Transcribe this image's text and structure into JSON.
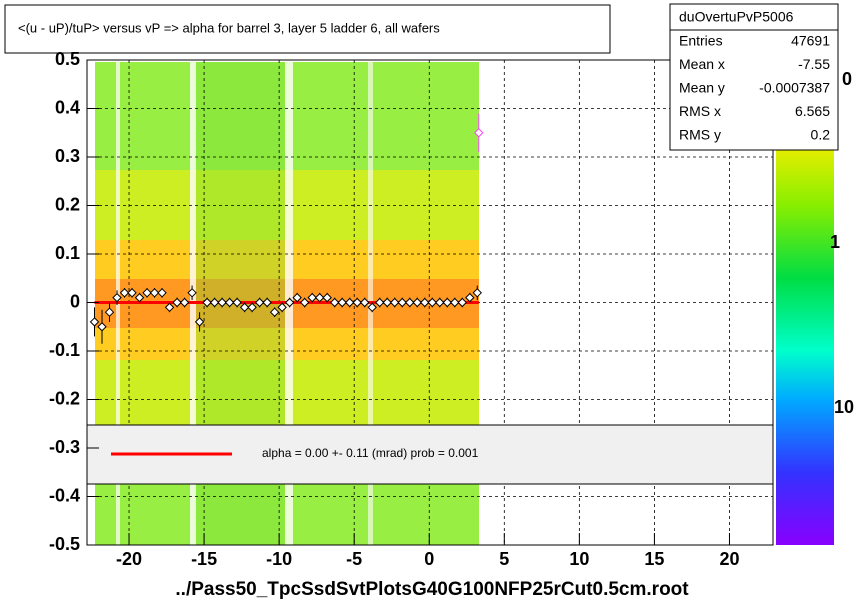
{
  "chart_data": {
    "type": "scatter",
    "title": "<(u - uP)/tuP>  versus   vP => alpha for barrel 3, layer 5 ladder 6, all wafers",
    "x_label": "../Pass50_TpcSsdSvtPlotsG40G100NFP25rCut0.5cm.root",
    "xlim": [
      -22.8,
      22.9
    ],
    "ylim": [
      -0.5,
      0.5
    ],
    "xticks": [
      -20,
      -15,
      -10,
      -5,
      0,
      5,
      10,
      15,
      20
    ],
    "yticks": [
      0.5,
      0.4,
      0.3,
      0.2,
      0.1,
      0,
      -0.1,
      -0.2,
      -0.3,
      -0.4,
      -0.5
    ],
    "grid": true,
    "series": [
      {
        "color": "#000000",
        "x": [
          -22.3,
          -21.8,
          -21.3,
          -20.8,
          -20.3,
          -19.8,
          -19.3,
          -18.8,
          -18.3,
          -17.8,
          -17.3,
          -16.8,
          -16.3,
          -15.8,
          -15.3,
          -14.8,
          -14.3,
          -13.8,
          -13.3,
          -12.8,
          -12.3,
          -11.8,
          -11.3,
          -10.8,
          -10.3,
          -9.8,
          -9.3,
          -8.8,
          -8.3,
          -7.8,
          -7.3,
          -6.8,
          -6.3,
          -5.8,
          -5.3,
          -4.8,
          -4.3,
          -3.8,
          -3.3,
          -2.8,
          -2.3,
          -1.8,
          -1.3,
          -0.8,
          -0.3,
          0.2,
          0.7,
          1.2,
          1.7,
          2.2,
          2.7,
          3.2
        ],
        "values": [
          -0.04,
          -0.05,
          -0.02,
          0.01,
          0.02,
          0.02,
          0.01,
          0.02,
          0.02,
          0.02,
          -0.01,
          0.0,
          0.0,
          0.02,
          -0.04,
          0.0,
          0.0,
          0.0,
          0.0,
          0.0,
          -0.01,
          -0.01,
          0.0,
          0.0,
          -0.02,
          -0.01,
          0.0,
          0.01,
          0.0,
          0.01,
          0.01,
          0.01,
          0.0,
          0.0,
          0.0,
          0.0,
          0.0,
          -0.01,
          0.0,
          0.0,
          0.0,
          0.0,
          0.0,
          0.0,
          0.0,
          0.0,
          0.0,
          0.0,
          0.0,
          0.0,
          0.01,
          0.02
        ],
        "errors": [
          0.03,
          0.035,
          0.02,
          0.015,
          0.01,
          0.01,
          0.01,
          0.01,
          0.01,
          0.01,
          0.01,
          0.01,
          0.01,
          0.015,
          0.02,
          0.01,
          0.01,
          0.01,
          0.01,
          0.01,
          0.01,
          0.01,
          0.01,
          0.01,
          0.01,
          0.01,
          0.01,
          0.01,
          0.01,
          0.01,
          0.01,
          0.01,
          0.01,
          0.01,
          0.01,
          0.01,
          0.01,
          0.01,
          0.01,
          0.01,
          0.01,
          0.01,
          0.01,
          0.01,
          0.01,
          0.01,
          0.01,
          0.01,
          0.01,
          0.01,
          0.01,
          0.015
        ]
      },
      {
        "color": "#ff44ff",
        "x": [
          3.3
        ],
        "values": [
          0.35
        ],
        "errors": [
          0.04
        ]
      }
    ],
    "fit": {
      "color": "#ff0000",
      "x": [
        -22.3,
        3.3
      ],
      "values": [
        0.0,
        0.0
      ]
    },
    "fit_label": "alpha =    0.00 +-  0.11 (mrad) prob = 0.001",
    "stats": {
      "title": "duOvertuPvP5006",
      "rows": [
        [
          "Entries",
          "47691"
        ],
        [
          "Mean x",
          "-7.55"
        ],
        [
          "Mean y",
          "-0.0007387"
        ],
        [
          "RMS x",
          "6.565"
        ],
        [
          "RMS y",
          "0.2"
        ]
      ]
    },
    "color_scale_labels": [
      "0",
      "1",
      "10"
    ]
  }
}
